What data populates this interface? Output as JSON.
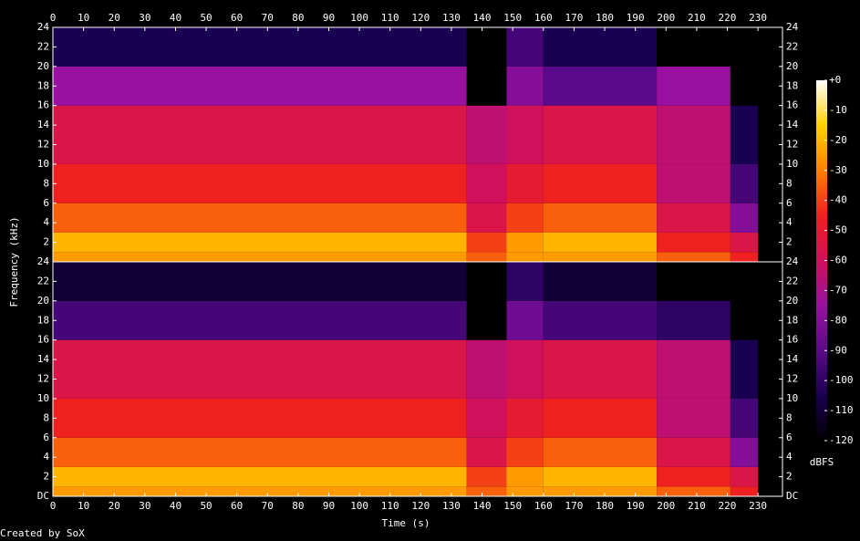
{
  "chart_data": {
    "type": "heatmap",
    "x_label": "Time (s)",
    "y_label": "Frequency (kHz)",
    "footer": "Created by SoX",
    "xlim": [
      0,
      238
    ],
    "xticks": [
      0,
      10,
      20,
      30,
      40,
      50,
      60,
      70,
      80,
      90,
      100,
      110,
      120,
      130,
      140,
      150,
      160,
      170,
      180,
      190,
      200,
      210,
      220,
      230
    ],
    "x_edges": [
      0,
      135,
      148,
      160,
      197,
      221,
      230,
      238
    ],
    "y_edges": [
      0,
      1,
      3,
      6,
      10,
      16,
      20,
      24
    ],
    "ylim": [
      0,
      24
    ],
    "channels": [
      {
        "yticks": [
          2,
          4,
          6,
          8,
          10,
          12,
          14,
          16,
          18,
          20,
          22,
          24
        ],
        "values": [
          [
            -25,
            -20,
            -35,
            -45,
            -55,
            -75,
            -105
          ],
          [
            -35,
            -40,
            -55,
            -60,
            -65,
            -120,
            -120
          ],
          [
            -25,
            -25,
            -40,
            -50,
            -60,
            -80,
            -95
          ],
          [
            -25,
            -20,
            -35,
            -45,
            -55,
            -90,
            -105
          ],
          [
            -35,
            -45,
            -55,
            -65,
            -65,
            -75,
            -120
          ],
          [
            -45,
            -55,
            -80,
            -95,
            -105,
            -120,
            -120
          ],
          [
            -120,
            -120,
            -120,
            -120,
            -120,
            -120,
            -120
          ]
        ]
      },
      {
        "yticks": [
          {
            "value": 0,
            "label": "DC"
          },
          2,
          4,
          6,
          8,
          10,
          12,
          14,
          16,
          18,
          20,
          22,
          24
        ],
        "values": [
          [
            -25,
            -20,
            -35,
            -45,
            -55,
            -95,
            -110
          ],
          [
            -35,
            -40,
            -55,
            -60,
            -65,
            -120,
            -120
          ],
          [
            -25,
            -25,
            -40,
            -50,
            -60,
            -85,
            -100
          ],
          [
            -25,
            -20,
            -35,
            -45,
            -55,
            -95,
            -110
          ],
          [
            -35,
            -45,
            -55,
            -65,
            -65,
            -100,
            -120
          ],
          [
            -45,
            -55,
            -80,
            -95,
            -105,
            -120,
            -120
          ],
          [
            -120,
            -120,
            -120,
            -120,
            -120,
            -120,
            -120
          ]
        ]
      }
    ],
    "colorbar": {
      "label": "dBFS",
      "clim": [
        -120,
        0
      ],
      "ticks": [
        {
          "value": 0,
          "label": "+0"
        },
        -10,
        -20,
        -30,
        -40,
        -50,
        -60,
        -70,
        -80,
        -90,
        -100,
        -110,
        -120
      ]
    }
  }
}
